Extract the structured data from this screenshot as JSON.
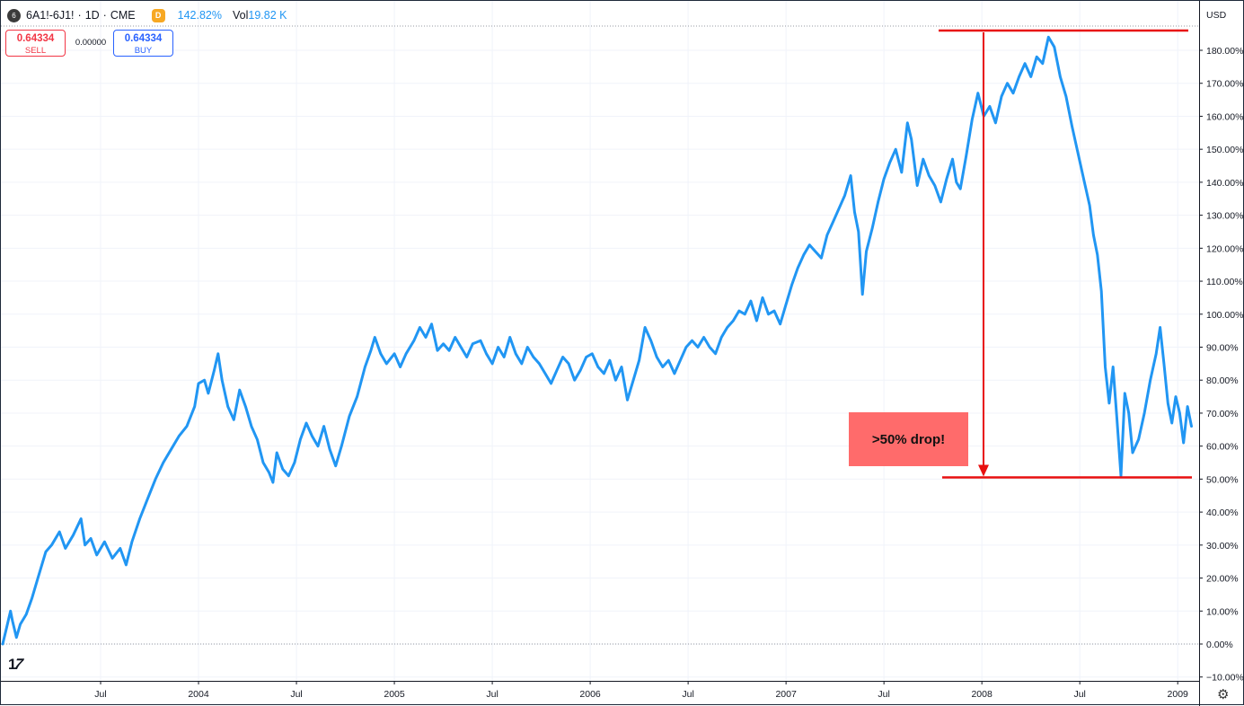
{
  "header": {
    "symbol_icon": "6",
    "symbol": "6A1!-6J1!",
    "sep1": "·",
    "interval": "1D",
    "sep2": "·",
    "exchange": "CME",
    "d_badge": "D",
    "change_pct": "142.82%",
    "vol_label": "Vol",
    "vol_value": "19.82 K"
  },
  "trade": {
    "sell_price": "0.64334",
    "sell_label": "SELL",
    "spread": "0.00000",
    "buy_price": "0.64334",
    "buy_label": "BUY"
  },
  "axis": {
    "currency": "USD",
    "settings_icon": "gear-icon",
    "logo": "TV"
  },
  "annotation": {
    "text": ">50% drop!",
    "top_value": 186,
    "bottom_value": 50.5,
    "line_color": "#e81010",
    "box_color": "#ff6b6b"
  },
  "chart_data": {
    "type": "line",
    "title": "",
    "xlabel": "",
    "ylabel": "",
    "ylim": [
      -12,
      188
    ],
    "xlim": [
      2003.0,
      2009.1
    ],
    "y_ticks": [
      -10,
      0,
      10,
      20,
      30,
      40,
      50,
      60,
      70,
      80,
      90,
      100,
      110,
      120,
      130,
      140,
      150,
      160,
      170,
      180
    ],
    "y_tick_labels": [
      "−10.00%",
      "0.00%",
      "10.00%",
      "20.00%",
      "30.00%",
      "40.00%",
      "50.00%",
      "60.00%",
      "70.00%",
      "80.00%",
      "90.00%",
      "100.00%",
      "110.00%",
      "120.00%",
      "130.00%",
      "140.00%",
      "150.00%",
      "160.00%",
      "170.00%",
      "180.00%"
    ],
    "x_ticks": [
      {
        "x": 2003.5,
        "label": "Jul"
      },
      {
        "x": 2004.0,
        "label": "2004"
      },
      {
        "x": 2004.5,
        "label": "Jul"
      },
      {
        "x": 2005.0,
        "label": "2005"
      },
      {
        "x": 2005.5,
        "label": "Jul"
      },
      {
        "x": 2006.0,
        "label": "2006"
      },
      {
        "x": 2006.5,
        "label": "Jul"
      },
      {
        "x": 2007.0,
        "label": "2007"
      },
      {
        "x": 2007.5,
        "label": "Jul"
      },
      {
        "x": 2008.0,
        "label": "2008"
      },
      {
        "x": 2008.5,
        "label": "Jul"
      },
      {
        "x": 2009.0,
        "label": "2009"
      }
    ],
    "baseline": 0,
    "grid": true,
    "line_color": "#2196f3",
    "series": [
      {
        "points": [
          [
            2003.0,
            0
          ],
          [
            2003.02,
            5
          ],
          [
            2003.04,
            10
          ],
          [
            2003.05,
            7
          ],
          [
            2003.07,
            2
          ],
          [
            2003.09,
            6
          ],
          [
            2003.12,
            9
          ],
          [
            2003.15,
            14
          ],
          [
            2003.18,
            20
          ],
          [
            2003.22,
            28
          ],
          [
            2003.25,
            30
          ],
          [
            2003.29,
            34
          ],
          [
            2003.32,
            29
          ],
          [
            2003.36,
            33
          ],
          [
            2003.4,
            38
          ],
          [
            2003.42,
            30
          ],
          [
            2003.45,
            32
          ],
          [
            2003.48,
            27
          ],
          [
            2003.52,
            31
          ],
          [
            2003.56,
            26
          ],
          [
            2003.6,
            29
          ],
          [
            2003.63,
            24
          ],
          [
            2003.66,
            31
          ],
          [
            2003.7,
            38
          ],
          [
            2003.74,
            44
          ],
          [
            2003.78,
            50
          ],
          [
            2003.82,
            55
          ],
          [
            2003.86,
            59
          ],
          [
            2003.9,
            63
          ],
          [
            2003.94,
            66
          ],
          [
            2003.98,
            72
          ],
          [
            2004.0,
            79
          ],
          [
            2004.03,
            80
          ],
          [
            2004.05,
            76
          ],
          [
            2004.08,
            83
          ],
          [
            2004.1,
            88
          ],
          [
            2004.12,
            80
          ],
          [
            2004.15,
            72
          ],
          [
            2004.18,
            68
          ],
          [
            2004.21,
            77
          ],
          [
            2004.24,
            72
          ],
          [
            2004.27,
            66
          ],
          [
            2004.3,
            62
          ],
          [
            2004.33,
            55
          ],
          [
            2004.36,
            52
          ],
          [
            2004.38,
            49
          ],
          [
            2004.4,
            58
          ],
          [
            2004.43,
            53
          ],
          [
            2004.46,
            51
          ],
          [
            2004.49,
            55
          ],
          [
            2004.52,
            62
          ],
          [
            2004.55,
            67
          ],
          [
            2004.58,
            63
          ],
          [
            2004.61,
            60
          ],
          [
            2004.64,
            66
          ],
          [
            2004.67,
            59
          ],
          [
            2004.7,
            54
          ],
          [
            2004.73,
            60
          ],
          [
            2004.77,
            69
          ],
          [
            2004.81,
            75
          ],
          [
            2004.85,
            84
          ],
          [
            2004.88,
            89
          ],
          [
            2004.9,
            93
          ],
          [
            2004.93,
            88
          ],
          [
            2004.96,
            85
          ],
          [
            2005.0,
            88
          ],
          [
            2005.03,
            84
          ],
          [
            2005.06,
            88
          ],
          [
            2005.1,
            92
          ],
          [
            2005.13,
            96
          ],
          [
            2005.16,
            93
          ],
          [
            2005.19,
            97
          ],
          [
            2005.22,
            89
          ],
          [
            2005.25,
            91
          ],
          [
            2005.28,
            89
          ],
          [
            2005.31,
            93
          ],
          [
            2005.34,
            90
          ],
          [
            2005.37,
            87
          ],
          [
            2005.4,
            91
          ],
          [
            2005.44,
            92
          ],
          [
            2005.47,
            88
          ],
          [
            2005.5,
            85
          ],
          [
            2005.53,
            90
          ],
          [
            2005.56,
            87
          ],
          [
            2005.59,
            93
          ],
          [
            2005.62,
            88
          ],
          [
            2005.65,
            85
          ],
          [
            2005.68,
            90
          ],
          [
            2005.71,
            87
          ],
          [
            2005.74,
            85
          ],
          [
            2005.77,
            82
          ],
          [
            2005.8,
            79
          ],
          [
            2005.83,
            83
          ],
          [
            2005.86,
            87
          ],
          [
            2005.89,
            85
          ],
          [
            2005.92,
            80
          ],
          [
            2005.95,
            83
          ],
          [
            2005.98,
            87
          ],
          [
            2006.01,
            88
          ],
          [
            2006.04,
            84
          ],
          [
            2006.07,
            82
          ],
          [
            2006.1,
            86
          ],
          [
            2006.13,
            80
          ],
          [
            2006.16,
            84
          ],
          [
            2006.19,
            74
          ],
          [
            2006.22,
            80
          ],
          [
            2006.25,
            86
          ],
          [
            2006.28,
            96
          ],
          [
            2006.31,
            92
          ],
          [
            2006.34,
            87
          ],
          [
            2006.37,
            84
          ],
          [
            2006.4,
            86
          ],
          [
            2006.43,
            82
          ],
          [
            2006.46,
            86
          ],
          [
            2006.49,
            90
          ],
          [
            2006.52,
            92
          ],
          [
            2006.55,
            90
          ],
          [
            2006.58,
            93
          ],
          [
            2006.61,
            90
          ],
          [
            2006.64,
            88
          ],
          [
            2006.67,
            93
          ],
          [
            2006.7,
            96
          ],
          [
            2006.73,
            98
          ],
          [
            2006.76,
            101
          ],
          [
            2006.79,
            100
          ],
          [
            2006.82,
            104
          ],
          [
            2006.85,
            98
          ],
          [
            2006.88,
            105
          ],
          [
            2006.91,
            100
          ],
          [
            2006.94,
            101
          ],
          [
            2006.97,
            97
          ],
          [
            2007.0,
            103
          ],
          [
            2007.03,
            109
          ],
          [
            2007.06,
            114
          ],
          [
            2007.09,
            118
          ],
          [
            2007.12,
            121
          ],
          [
            2007.15,
            119
          ],
          [
            2007.18,
            117
          ],
          [
            2007.21,
            124
          ],
          [
            2007.24,
            128
          ],
          [
            2007.27,
            132
          ],
          [
            2007.3,
            136
          ],
          [
            2007.33,
            142
          ],
          [
            2007.35,
            131
          ],
          [
            2007.37,
            125
          ],
          [
            2007.39,
            106
          ],
          [
            2007.41,
            119
          ],
          [
            2007.44,
            126
          ],
          [
            2007.47,
            134
          ],
          [
            2007.5,
            141
          ],
          [
            2007.53,
            146
          ],
          [
            2007.56,
            150
          ],
          [
            2007.59,
            143
          ],
          [
            2007.62,
            158
          ],
          [
            2007.64,
            153
          ],
          [
            2007.67,
            139
          ],
          [
            2007.7,
            147
          ],
          [
            2007.73,
            142
          ],
          [
            2007.76,
            139
          ],
          [
            2007.79,
            134
          ],
          [
            2007.82,
            141
          ],
          [
            2007.85,
            147
          ],
          [
            2007.87,
            140
          ],
          [
            2007.89,
            138
          ],
          [
            2007.92,
            148
          ],
          [
            2007.95,
            159
          ],
          [
            2007.98,
            167
          ],
          [
            2008.01,
            160
          ],
          [
            2008.04,
            163
          ],
          [
            2008.07,
            158
          ],
          [
            2008.1,
            166
          ],
          [
            2008.13,
            170
          ],
          [
            2008.16,
            167
          ],
          [
            2008.19,
            172
          ],
          [
            2008.22,
            176
          ],
          [
            2008.25,
            172
          ],
          [
            2008.28,
            178
          ],
          [
            2008.31,
            176
          ],
          [
            2008.34,
            184
          ],
          [
            2008.37,
            181
          ],
          [
            2008.4,
            172
          ],
          [
            2008.43,
            166
          ],
          [
            2008.46,
            157
          ],
          [
            2008.49,
            149
          ],
          [
            2008.52,
            141
          ],
          [
            2008.55,
            133
          ],
          [
            2008.57,
            124
          ],
          [
            2008.59,
            118
          ],
          [
            2008.61,
            107
          ],
          [
            2008.63,
            84
          ],
          [
            2008.65,
            73
          ],
          [
            2008.67,
            84
          ],
          [
            2008.69,
            68
          ],
          [
            2008.71,
            51
          ],
          [
            2008.73,
            76
          ],
          [
            2008.75,
            70
          ],
          [
            2008.77,
            58
          ],
          [
            2008.8,
            62
          ],
          [
            2008.83,
            70
          ],
          [
            2008.86,
            80
          ],
          [
            2008.89,
            88
          ],
          [
            2008.91,
            96
          ],
          [
            2008.93,
            85
          ],
          [
            2008.95,
            73
          ],
          [
            2008.97,
            67
          ],
          [
            2008.99,
            75
          ],
          [
            2009.01,
            70
          ],
          [
            2009.03,
            61
          ],
          [
            2009.05,
            72
          ],
          [
            2009.07,
            66
          ]
        ]
      }
    ]
  }
}
